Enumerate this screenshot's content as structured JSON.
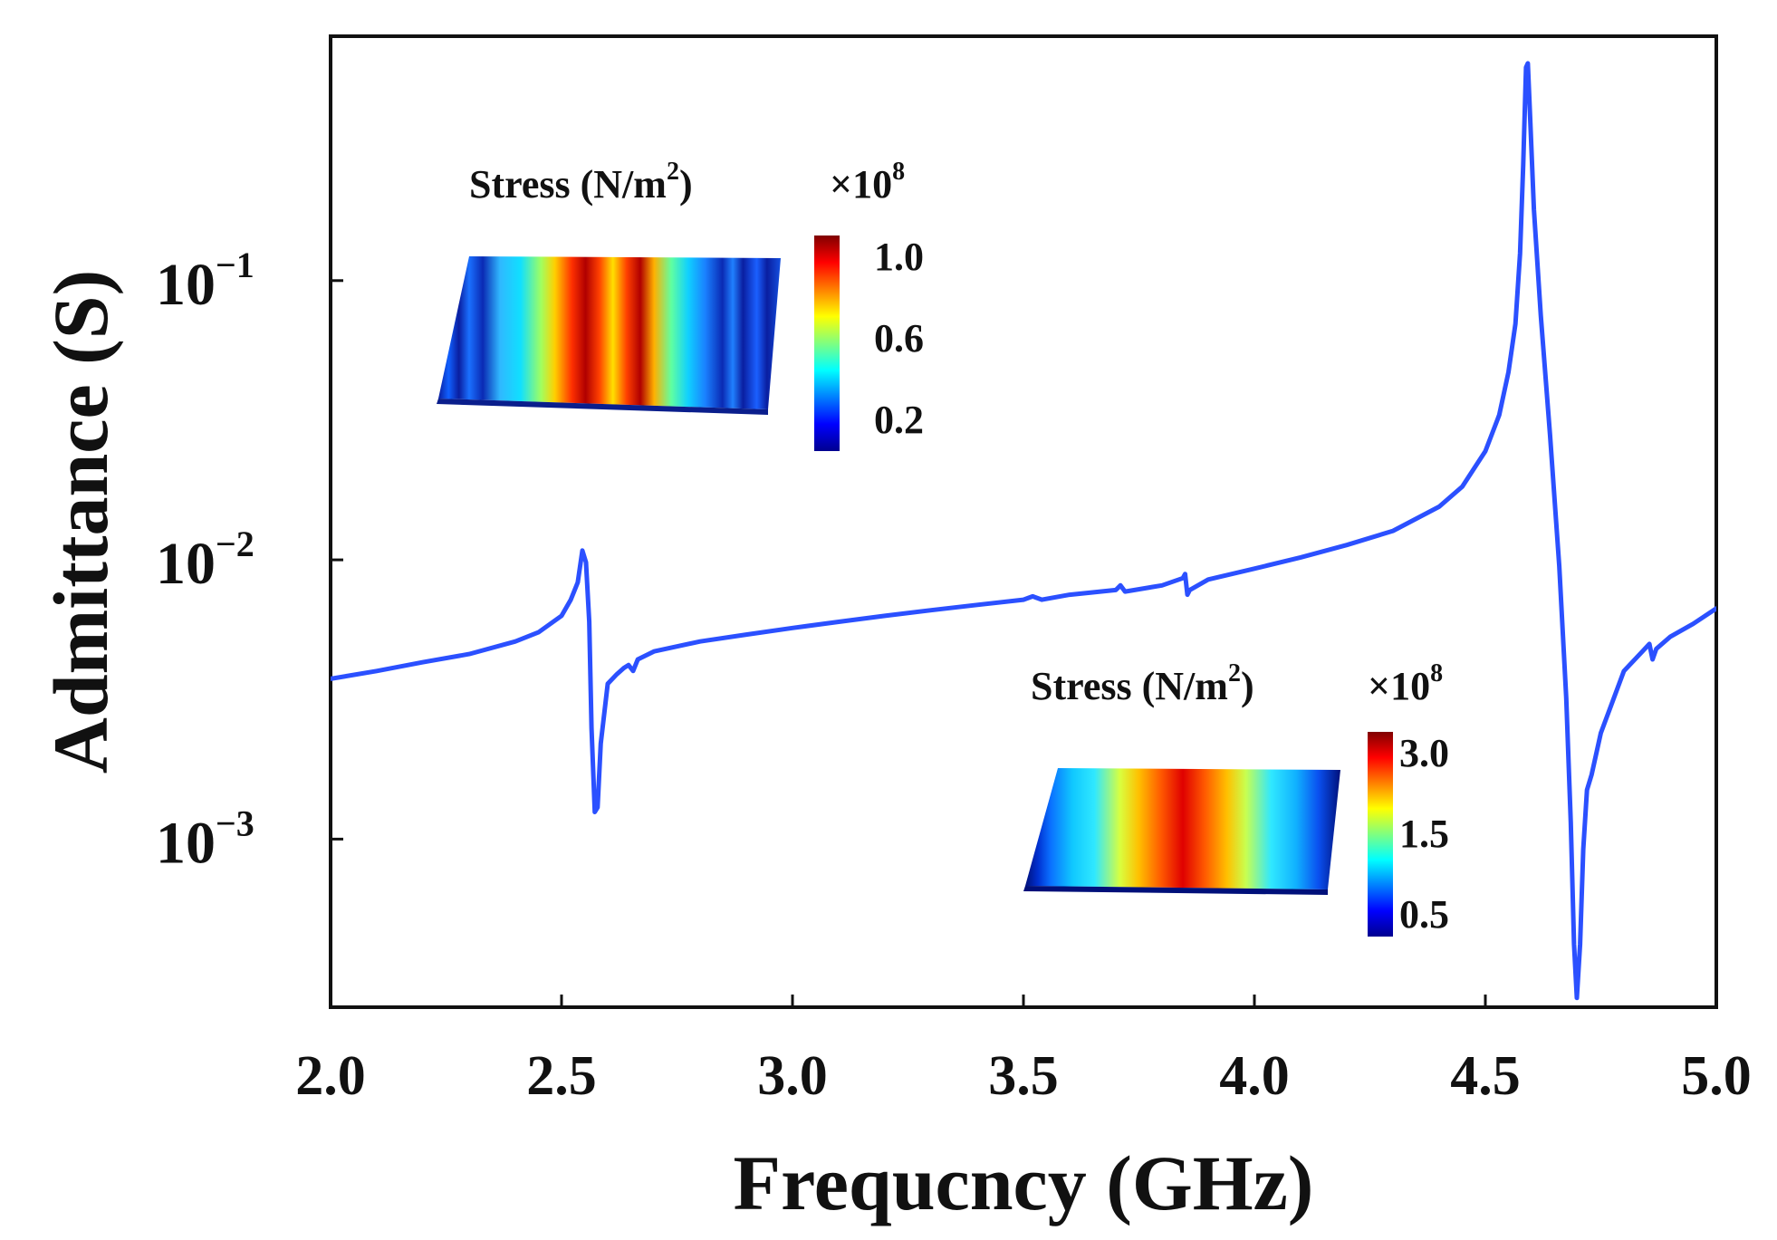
{
  "chart_data": {
    "type": "line",
    "title": "",
    "xlabel": "Frequcncy (GHz)",
    "ylabel": "Admittance (S)",
    "xlim": [
      2.0,
      5.0
    ],
    "ylim": [
      0.00025,
      0.75
    ],
    "y_scale": "log",
    "x_ticks": [
      "2.0",
      "2.5",
      "3.0",
      "3.5",
      "4.0",
      "4.5",
      "5.0"
    ],
    "y_ticks": [
      {
        "base": "10",
        "exp": "−3",
        "value": 0.001
      },
      {
        "base": "10",
        "exp": "−2",
        "value": 0.01
      },
      {
        "base": "10",
        "exp": "−1",
        "value": 0.1
      }
    ],
    "series": [
      {
        "name": "Admittance",
        "color": "#2b50ff",
        "points": [
          [
            2.0,
            0.00375
          ],
          [
            2.1,
            0.004
          ],
          [
            2.2,
            0.0043
          ],
          [
            2.3,
            0.0046
          ],
          [
            2.4,
            0.0051
          ],
          [
            2.45,
            0.0055
          ],
          [
            2.5,
            0.0063
          ],
          [
            2.52,
            0.0072
          ],
          [
            2.535,
            0.0083
          ],
          [
            2.545,
            0.0108
          ],
          [
            2.553,
            0.0098
          ],
          [
            2.56,
            0.006
          ],
          [
            2.565,
            0.0025
          ],
          [
            2.572,
            0.00125
          ],
          [
            2.578,
            0.0013
          ],
          [
            2.585,
            0.0022
          ],
          [
            2.6,
            0.0036
          ],
          [
            2.62,
            0.0039
          ],
          [
            2.635,
            0.0041
          ],
          [
            2.645,
            0.0042
          ],
          [
            2.655,
            0.004
          ],
          [
            2.665,
            0.0044
          ],
          [
            2.7,
            0.0047
          ],
          [
            2.8,
            0.0051
          ],
          [
            2.9,
            0.0054
          ],
          [
            3.0,
            0.0057
          ],
          [
            3.1,
            0.006
          ],
          [
            3.2,
            0.0063
          ],
          [
            3.3,
            0.0066
          ],
          [
            3.4,
            0.0069
          ],
          [
            3.5,
            0.0072
          ],
          [
            3.52,
            0.0074
          ],
          [
            3.54,
            0.0072
          ],
          [
            3.6,
            0.0075
          ],
          [
            3.7,
            0.0078
          ],
          [
            3.71,
            0.0081
          ],
          [
            3.72,
            0.0077
          ],
          [
            3.8,
            0.0081
          ],
          [
            3.845,
            0.0086
          ],
          [
            3.85,
            0.0089
          ],
          [
            3.855,
            0.0075
          ],
          [
            3.86,
            0.0078
          ],
          [
            3.9,
            0.0085
          ],
          [
            4.0,
            0.0093
          ],
          [
            4.1,
            0.0102
          ],
          [
            4.2,
            0.0113
          ],
          [
            4.3,
            0.0127
          ],
          [
            4.4,
            0.0155
          ],
          [
            4.45,
            0.0183
          ],
          [
            4.5,
            0.0245
          ],
          [
            4.53,
            0.033
          ],
          [
            4.55,
            0.047
          ],
          [
            4.565,
            0.07
          ],
          [
            4.575,
            0.125
          ],
          [
            4.582,
            0.26
          ],
          [
            4.588,
            0.58
          ],
          [
            4.592,
            0.6
          ],
          [
            4.597,
            0.38
          ],
          [
            4.605,
            0.18
          ],
          [
            4.62,
            0.075
          ],
          [
            4.64,
            0.028
          ],
          [
            4.66,
            0.0095
          ],
          [
            4.675,
            0.0032
          ],
          [
            4.685,
            0.00115
          ],
          [
            4.692,
            0.00042
          ],
          [
            4.698,
            0.00027
          ],
          [
            4.705,
            0.00042
          ],
          [
            4.712,
            0.00092
          ],
          [
            4.72,
            0.0015
          ],
          [
            4.73,
            0.0017
          ],
          [
            4.75,
            0.0024
          ],
          [
            4.8,
            0.004
          ],
          [
            4.84,
            0.0047
          ],
          [
            4.855,
            0.005
          ],
          [
            4.862,
            0.0044
          ],
          [
            4.87,
            0.0048
          ],
          [
            4.9,
            0.0053
          ],
          [
            4.95,
            0.0059
          ],
          [
            5.0,
            0.0067
          ]
        ]
      }
    ],
    "insets": [
      {
        "title": "Stress (N/m",
        "title_sup": "2",
        "title_close": ")",
        "scale_label": "×10",
        "scale_exp": "8",
        "colorbar_ticks": [
          "1.0",
          "0.6",
          "0.2"
        ],
        "colorbar_range": [
          0.0,
          1.1
        ]
      },
      {
        "title": "Stress (N/m",
        "title_sup": "2",
        "title_close": ")",
        "scale_label": "×10",
        "scale_exp": "8",
        "colorbar_ticks": [
          "3.0",
          "1.5",
          "0.5"
        ],
        "colorbar_range": [
          0.0,
          3.3
        ]
      }
    ],
    "colors": {
      "line": "#2b50ff",
      "axes": "#111111",
      "jet_low": "#00008f",
      "jet_high": "#800000"
    }
  }
}
